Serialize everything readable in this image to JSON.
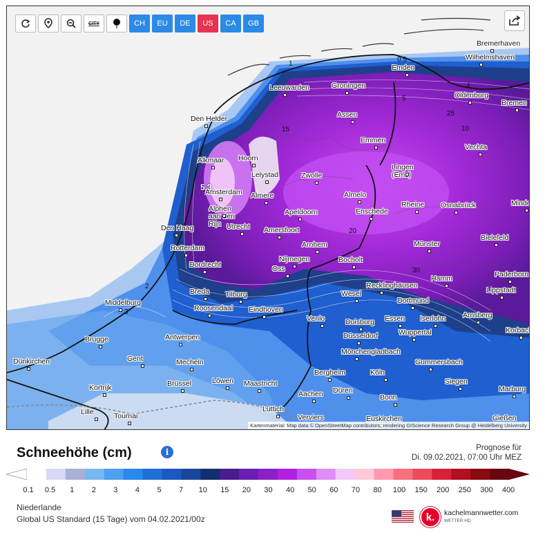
{
  "toolbar": {
    "city_label": "CITY",
    "regions": [
      {
        "label": "CH",
        "active": false
      },
      {
        "label": "EU",
        "active": false
      },
      {
        "label": "DE",
        "active": false
      },
      {
        "label": "US",
        "active": true
      },
      {
        "label": "CA",
        "active": false
      },
      {
        "label": "GB",
        "active": false
      }
    ]
  },
  "map": {
    "attribution": "Kartenmaterial: Map data © OpenStreetMap contributors, rendering GIScience Research Group @ Heidelberg University",
    "cities": [
      "Bremerhaven",
      "Wilhelmshaven",
      "Emden",
      "Leeuwarden",
      "Groningen",
      "Oldenburg",
      "Bremen",
      "Den Helder",
      "Assen",
      "Emmen",
      "Vechta",
      "Alkmaar",
      "Hoorn",
      "Lelystad",
      "Zwolle",
      "Lingen (Ems)",
      "Amsterdam",
      "Almere",
      "Almelo",
      "Alphen aan den Rijn",
      "Apeldoorn",
      "Enschede",
      "Rheine",
      "Osnabrück",
      "Minden",
      "Den Haag",
      "Utrecht",
      "Amersfoort",
      "Rotterdam",
      "Arnhem",
      "Münster",
      "Bielefeld",
      "Dordrecht",
      "Nijmegen",
      "Bocholt",
      "Oss",
      "Paderborn",
      "Breda",
      "Recklinghausen",
      "Hamm",
      "Middelburg",
      "Tilburg",
      "Wesel",
      "Roosendaal",
      "Lippstadt",
      "Dortmund",
      "Eindhoven",
      "Arnsberg",
      "Venlo",
      "Duisburg",
      "Essen",
      "Iserlohn",
      "Brugge",
      "Antwerpen",
      "Wuppertal",
      "Korbach",
      "Düsseldorf",
      "Mönchengladbach",
      "Dünkirchen",
      "Gent",
      "Mecheln",
      "Gummersbach",
      "Bergheim",
      "Köln",
      "Kortrijk",
      "Siegen",
      "Brüssel",
      "Löwen",
      "Maastricht",
      "Düren",
      "Aachen",
      "Bonn",
      "Marburg",
      "Lille",
      "Lüttich",
      "Tournai",
      "Verviers",
      "Euskirchen",
      "Gießen"
    ],
    "contour_labels": [
      "0.5",
      "1",
      "2",
      "3",
      "4",
      "5",
      "10",
      "15",
      "20",
      "25",
      "30",
      "5.3"
    ]
  },
  "title": "Schneehöhe (cm)",
  "forecast_label": "Prognose für",
  "forecast_date": "Di. 09.02.2021, 07:00 Uhr MEZ",
  "legend": {
    "values": [
      "0.1",
      "0.5",
      "1",
      "2",
      "3",
      "4",
      "5",
      "7",
      "10",
      "15",
      "20",
      "30",
      "40",
      "50",
      "60",
      "70",
      "80",
      "100",
      "150",
      "200",
      "250",
      "300",
      "400"
    ],
    "colors": [
      "#ffffff",
      "#d8d8f4",
      "#a8b0d8",
      "#78b8f0",
      "#4fa0f0",
      "#2a88ee",
      "#1f6fd6",
      "#1c58c0",
      "#1a4699",
      "#122f70",
      "#4a1b8f",
      "#6a1fb0",
      "#8c20c8",
      "#b020e0",
      "#c850f0",
      "#e08cf6",
      "#f2c8f8",
      "#ffc8d8",
      "#ff9aae",
      "#f87080",
      "#ee4a5a",
      "#d8203a",
      "#b01020",
      "#8a0a14",
      "#6a0610"
    ]
  },
  "meta": {
    "region": "Niederlande",
    "model": "Global US Standard",
    "model_period": "(15 Tage)",
    "run": "vom 04.02.2021/00z"
  },
  "brand": {
    "name": "kachelmannwetter.com",
    "sub": "WETTER HD"
  }
}
